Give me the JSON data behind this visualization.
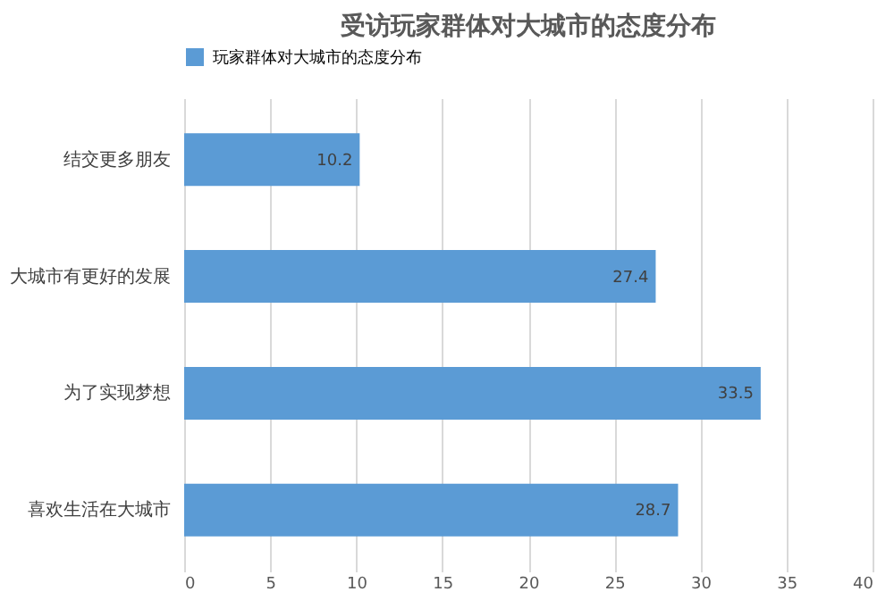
{
  "chart_data": {
    "type": "bar",
    "orientation": "horizontal",
    "title": "受访玩家群体对大城市的态度分布",
    "categories": [
      "结交更多朋友",
      "大城市有更好的发展",
      "为了实现梦想",
      "喜欢生活在大城市"
    ],
    "series": [
      {
        "name": "玩家群体对大城市的态度分布",
        "color": "#5b9bd5",
        "values": [
          10.2,
          27.4,
          33.5,
          28.7
        ]
      }
    ],
    "xlim": [
      0,
      40
    ],
    "xticks": [
      0,
      5,
      10,
      15,
      20,
      25,
      30,
      35,
      40
    ],
    "grid": "x",
    "legend": "top",
    "data_labels": true
  }
}
